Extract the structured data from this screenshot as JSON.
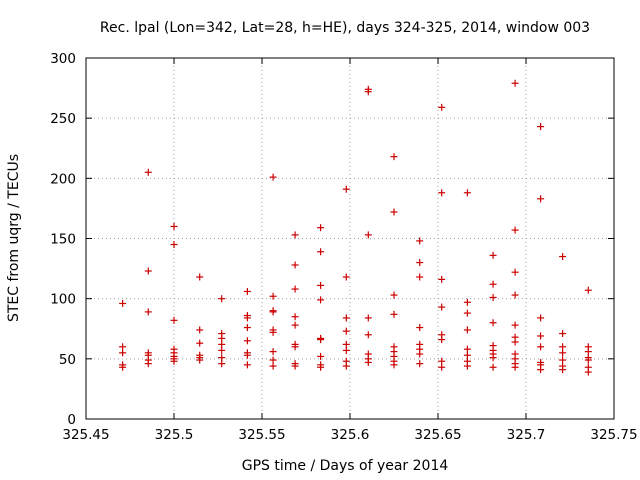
{
  "chart_data": {
    "type": "scatter",
    "title": "Rec. lpal (Lon=342, Lat=28, h=HE), days 324-325, 2014, window 003",
    "xlabel": "GPS time / Days of year 2014",
    "ylabel": "STEC from uqrg / TECUs",
    "xlim": [
      325.45,
      325.75
    ],
    "ylim": [
      0,
      300
    ],
    "xticks": [
      325.45,
      325.5,
      325.55,
      325.6,
      325.65,
      325.7,
      325.75
    ],
    "xtick_labels": [
      "325.45",
      "325.5",
      "325.55",
      "325.6",
      "325.65",
      "325.7",
      "325.75"
    ],
    "yticks": [
      0,
      50,
      100,
      150,
      200,
      250,
      300
    ],
    "ytick_labels": [
      "0",
      "50",
      "100",
      "150",
      "200",
      "250",
      "300"
    ],
    "grid": true,
    "marker": "+",
    "color": "#cc0000",
    "series": [
      {
        "name": "STEC",
        "points": [
          [
            325.4708,
            96
          ],
          [
            325.4708,
            60
          ],
          [
            325.4708,
            55
          ],
          [
            325.4708,
            45
          ],
          [
            325.4708,
            43
          ],
          [
            325.4854,
            205
          ],
          [
            325.4854,
            123
          ],
          [
            325.4854,
            89
          ],
          [
            325.4854,
            55
          ],
          [
            325.4854,
            53
          ],
          [
            325.4854,
            49
          ],
          [
            325.4854,
            46
          ],
          [
            325.5,
            160
          ],
          [
            325.5,
            145
          ],
          [
            325.5,
            82
          ],
          [
            325.5,
            58
          ],
          [
            325.5,
            55
          ],
          [
            325.5,
            52
          ],
          [
            325.5,
            50
          ],
          [
            325.5,
            48
          ],
          [
            325.5146,
            118
          ],
          [
            325.5146,
            74
          ],
          [
            325.5146,
            63
          ],
          [
            325.5146,
            53
          ],
          [
            325.5146,
            51
          ],
          [
            325.5146,
            49
          ],
          [
            325.5271,
            100
          ],
          [
            325.5271,
            71
          ],
          [
            325.5271,
            67
          ],
          [
            325.5271,
            62
          ],
          [
            325.5271,
            57
          ],
          [
            325.5271,
            51
          ],
          [
            325.5271,
            46
          ],
          [
            325.5417,
            106
          ],
          [
            325.5417,
            86
          ],
          [
            325.5417,
            84
          ],
          [
            325.5417,
            76
          ],
          [
            325.5417,
            65
          ],
          [
            325.5417,
            55
          ],
          [
            325.5417,
            53
          ],
          [
            325.5417,
            45
          ],
          [
            325.5563,
            201
          ],
          [
            325.5563,
            102
          ],
          [
            325.5563,
            90
          ],
          [
            325.5563,
            89
          ],
          [
            325.5563,
            74
          ],
          [
            325.5563,
            72
          ],
          [
            325.5563,
            56
          ],
          [
            325.5563,
            49
          ],
          [
            325.5563,
            44
          ],
          [
            325.5688,
            153
          ],
          [
            325.5688,
            128
          ],
          [
            325.5688,
            108
          ],
          [
            325.5688,
            85
          ],
          [
            325.5688,
            78
          ],
          [
            325.5688,
            62
          ],
          [
            325.5688,
            60
          ],
          [
            325.5688,
            46
          ],
          [
            325.5688,
            44
          ],
          [
            325.5833,
            159
          ],
          [
            325.5833,
            139
          ],
          [
            325.5833,
            111
          ],
          [
            325.5833,
            99
          ],
          [
            325.5833,
            67
          ],
          [
            325.5833,
            66
          ],
          [
            325.5833,
            52
          ],
          [
            325.5833,
            45
          ],
          [
            325.5833,
            43
          ],
          [
            325.5979,
            191
          ],
          [
            325.5979,
            118
          ],
          [
            325.5979,
            84
          ],
          [
            325.5979,
            73
          ],
          [
            325.5979,
            62
          ],
          [
            325.5979,
            57
          ],
          [
            325.5979,
            48
          ],
          [
            325.5979,
            44
          ],
          [
            325.6104,
            274
          ],
          [
            325.6104,
            272
          ],
          [
            325.6104,
            153
          ],
          [
            325.6104,
            84
          ],
          [
            325.6104,
            70
          ],
          [
            325.6104,
            54
          ],
          [
            325.6104,
            50
          ],
          [
            325.6104,
            47
          ],
          [
            325.625,
            218
          ],
          [
            325.625,
            172
          ],
          [
            325.625,
            103
          ],
          [
            325.625,
            87
          ],
          [
            325.625,
            60
          ],
          [
            325.625,
            56
          ],
          [
            325.625,
            52
          ],
          [
            325.625,
            48
          ],
          [
            325.625,
            45
          ],
          [
            325.6396,
            148
          ],
          [
            325.6396,
            130
          ],
          [
            325.6396,
            118
          ],
          [
            325.6396,
            76
          ],
          [
            325.6396,
            62
          ],
          [
            325.6396,
            58
          ],
          [
            325.6396,
            54
          ],
          [
            325.6396,
            46
          ],
          [
            325.6521,
            259
          ],
          [
            325.6521,
            188
          ],
          [
            325.6521,
            116
          ],
          [
            325.6521,
            93
          ],
          [
            325.6521,
            70
          ],
          [
            325.6521,
            66
          ],
          [
            325.6521,
            48
          ],
          [
            325.6521,
            43
          ],
          [
            325.6667,
            188
          ],
          [
            325.6667,
            97
          ],
          [
            325.6667,
            88
          ],
          [
            325.6667,
            74
          ],
          [
            325.6667,
            58
          ],
          [
            325.6667,
            53
          ],
          [
            325.6667,
            48
          ],
          [
            325.6667,
            44
          ],
          [
            325.6813,
            136
          ],
          [
            325.6813,
            112
          ],
          [
            325.6813,
            101
          ],
          [
            325.6813,
            80
          ],
          [
            325.6813,
            61
          ],
          [
            325.6813,
            57
          ],
          [
            325.6813,
            54
          ],
          [
            325.6813,
            51
          ],
          [
            325.6813,
            43
          ],
          [
            325.6938,
            279
          ],
          [
            325.6938,
            157
          ],
          [
            325.6938,
            122
          ],
          [
            325.6938,
            103
          ],
          [
            325.6938,
            78
          ],
          [
            325.6938,
            68
          ],
          [
            325.6938,
            64
          ],
          [
            325.6938,
            54
          ],
          [
            325.6938,
            50
          ],
          [
            325.6938,
            46
          ],
          [
            325.6938,
            43
          ],
          [
            325.7083,
            243
          ],
          [
            325.7083,
            183
          ],
          [
            325.7083,
            84
          ],
          [
            325.7083,
            69
          ],
          [
            325.7083,
            60
          ],
          [
            325.7083,
            47
          ],
          [
            325.7083,
            45
          ],
          [
            325.7083,
            41
          ],
          [
            325.7208,
            135
          ],
          [
            325.7208,
            71
          ],
          [
            325.7208,
            60
          ],
          [
            325.7208,
            55
          ],
          [
            325.7208,
            49
          ],
          [
            325.7208,
            44
          ],
          [
            325.7208,
            41
          ],
          [
            325.7354,
            107
          ],
          [
            325.7354,
            60
          ],
          [
            325.7354,
            56
          ],
          [
            325.7354,
            51
          ],
          [
            325.7354,
            49
          ],
          [
            325.7354,
            43
          ],
          [
            325.7354,
            39
          ]
        ]
      }
    ]
  }
}
